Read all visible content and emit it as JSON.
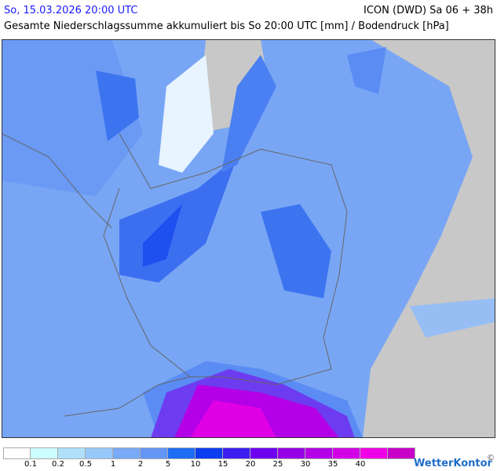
{
  "header": {
    "valid_time": "So, 15.03.2026 20:00 UTC",
    "model_run": "ICON (DWD) Sa 06 + 38h",
    "subtitle": "Gesamte Niederschlagssumme akkumuliert bis So 20:00 UTC [mm] / Bodendruck [hPa]"
  },
  "legend": {
    "colors": [
      "#ffffff",
      "#ccffff",
      "#b0e0fa",
      "#96c8fa",
      "#78aaf5",
      "#6496f5",
      "#1e6ef5",
      "#0a3cf0",
      "#3c1ef0",
      "#6e00f0",
      "#9600e6",
      "#b400e6",
      "#d200e6",
      "#f000e6",
      "#c800c8"
    ],
    "labels": [
      "0.1",
      "0.2",
      "0.5",
      "1",
      "2",
      "5",
      "10",
      "15",
      "20",
      "25",
      "30",
      "35",
      "40"
    ]
  },
  "logo": {
    "text": "WetterKontor",
    "copyright": "©"
  }
}
